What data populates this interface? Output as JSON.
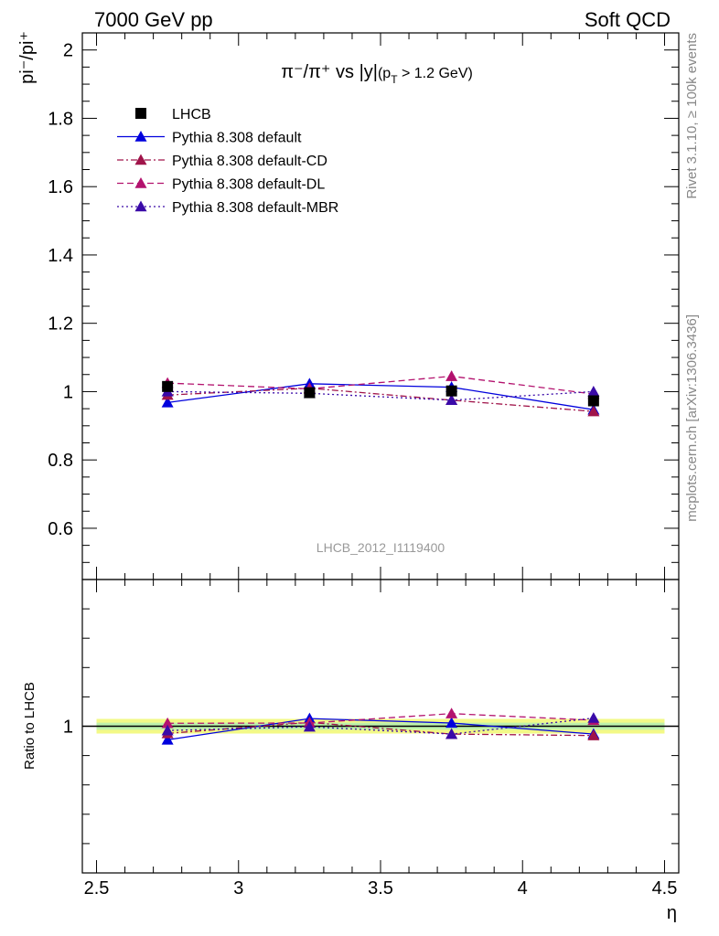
{
  "header": {
    "left": "7000 GeV pp",
    "right": "Soft QCD"
  },
  "side_labels": {
    "rivet": "Rivet 3.1.10, ≥ 100k events",
    "mcplots": "mcplots.cern.ch [arXiv:1306.3436]"
  },
  "chart_data": {
    "type": "line",
    "title": "π⁻/π⁺ vs |y|(p_T > 1.2 GeV)",
    "title_parts": {
      "main": "π⁻/π⁺ vs |y|",
      "cut": "(p",
      "cut_sub": "T",
      "cut_end": " > 1.2 GeV)"
    },
    "ylabel": "pi⁻/pi⁺",
    "xlabel": "η",
    "ratio_ylabel": "Ratio to LHCB",
    "analysis_id": "LHCB_2012_I1119400",
    "xlim": [
      2.45,
      4.55
    ],
    "ylim": [
      0.45,
      2.05
    ],
    "ratio_ylim": [
      0.5,
      1.5
    ],
    "x_ticks": [
      "2.5",
      "3",
      "3.5",
      "4",
      "4.5"
    ],
    "y_ticks": [
      "0.6",
      "0.8",
      "1",
      "1.2",
      "1.4",
      "1.6",
      "1.8",
      "2"
    ],
    "ratio_y_ticks": [
      "1"
    ],
    "x": [
      2.75,
      3.25,
      3.75,
      4.25
    ],
    "data": {
      "name": "LHCB",
      "color": "#000000",
      "values": [
        1.015,
        0.997,
        1.002,
        0.973
      ],
      "errors": [
        0.015,
        0.012,
        0.012,
        0.015
      ],
      "band_low": [
        0.975,
        0.975,
        0.975,
        0.975
      ],
      "band_high": [
        1.025,
        1.025,
        1.025,
        1.025
      ]
    },
    "series": [
      {
        "name": "Pythia 8.308 default",
        "color": "#0000dd",
        "dash": "solid",
        "values": [
          0.968,
          1.023,
          1.013,
          0.947
        ],
        "errors": [
          0.012,
          0.014,
          0.013,
          0.013
        ]
      },
      {
        "name": "Pythia 8.308 default-CD",
        "color": "#a0144a",
        "dash": "dashdot",
        "values": [
          0.99,
          1.01,
          0.975,
          0.942
        ],
        "errors": [
          0.012,
          0.013,
          0.013,
          0.012
        ]
      },
      {
        "name": "Pythia 8.308 default-DL",
        "color": "#b3126e",
        "dash": "dashed",
        "values": [
          1.025,
          1.008,
          1.045,
          0.993
        ],
        "errors": [
          0.013,
          0.014,
          0.015,
          0.014
        ]
      },
      {
        "name": "Pythia 8.308 default-MBR",
        "color": "#3a0aa8",
        "dash": "dotted",
        "values": [
          1.0,
          0.995,
          0.975,
          1.0
        ],
        "errors": [
          0.012,
          0.012,
          0.012,
          0.013
        ]
      }
    ],
    "legend_position": "top-left",
    "grid": false
  }
}
